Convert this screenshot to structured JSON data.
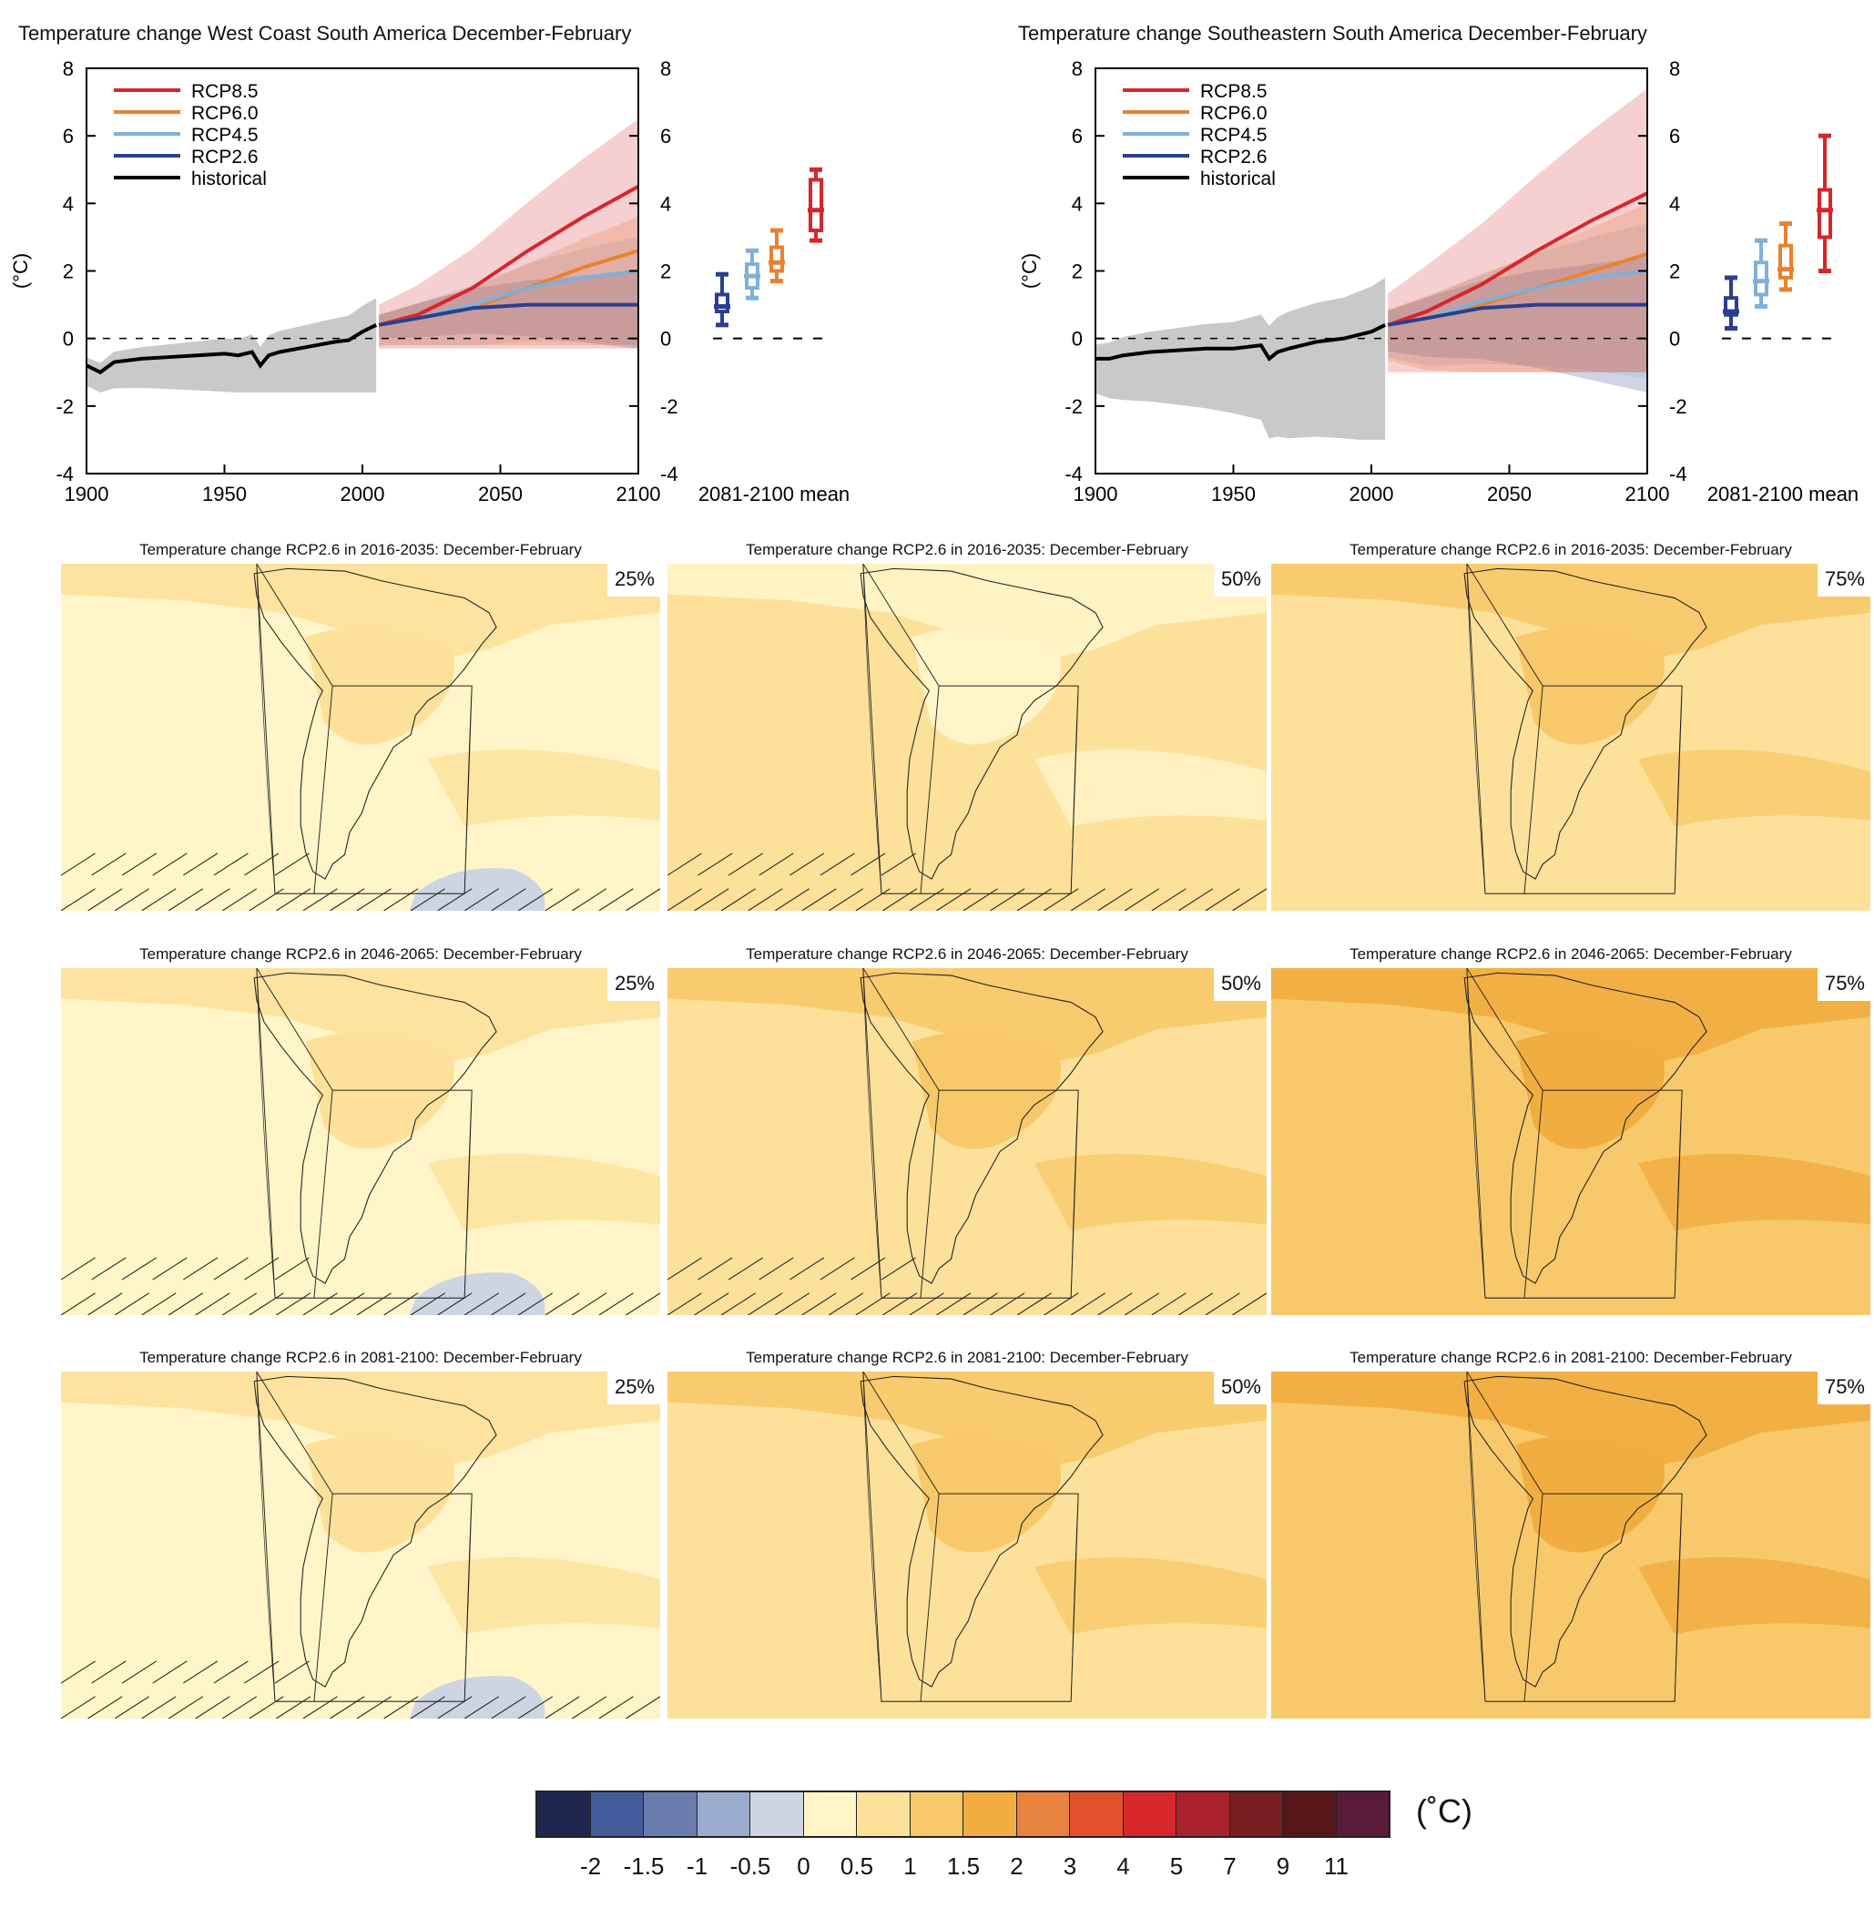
{
  "chart_data": [
    {
      "type": "line",
      "title": "Temperature change West Coast South America December-February",
      "ylabel": "(°C)",
      "xlim": [
        1900,
        2100
      ],
      "ylim": [
        -4,
        8
      ],
      "xticks": [
        1900,
        1950,
        2000,
        2050,
        2100
      ],
      "yticks": [
        -4,
        -2,
        0,
        2,
        4,
        6,
        8
      ],
      "box_axis_label": "2081-2100 mean",
      "legend": [
        "RCP8.5",
        "RCP6.0",
        "RCP4.5",
        "RCP2.6",
        "historical"
      ],
      "series": [
        {
          "name": "historical",
          "color": "#000000",
          "x": [
            1900,
            1905,
            1910,
            1920,
            1930,
            1940,
            1950,
            1955,
            1960,
            1963,
            1966,
            1970,
            1980,
            1990,
            1995,
            2000,
            2005
          ],
          "y": [
            -0.8,
            -1.0,
            -0.7,
            -0.6,
            -0.55,
            -0.5,
            -0.45,
            -0.5,
            -0.4,
            -0.8,
            -0.5,
            -0.4,
            -0.25,
            -0.1,
            -0.05,
            0.2,
            0.4
          ],
          "band": [
            -1.6,
            1.2
          ]
        },
        {
          "name": "RCP2.6",
          "color": "#2a3f8f",
          "x": [
            2006,
            2020,
            2040,
            2060,
            2080,
            2100
          ],
          "y": [
            0.4,
            0.6,
            0.9,
            1.0,
            1.0,
            1.0
          ],
          "band": [
            -0.3,
            2.0
          ]
        },
        {
          "name": "RCP4.5",
          "color": "#7fb0da",
          "x": [
            2006,
            2020,
            2040,
            2060,
            2080,
            2100
          ],
          "y": [
            0.4,
            0.6,
            1.0,
            1.5,
            1.8,
            2.0
          ],
          "band": [
            -0.2,
            3.0
          ]
        },
        {
          "name": "RCP6.0",
          "color": "#e8822f",
          "x": [
            2006,
            2020,
            2040,
            2060,
            2080,
            2100
          ],
          "y": [
            0.4,
            0.6,
            0.9,
            1.5,
            2.1,
            2.6
          ],
          "band": [
            -0.2,
            3.6
          ]
        },
        {
          "name": "RCP8.5",
          "color": "#d7262b",
          "x": [
            2006,
            2020,
            2040,
            2060,
            2080,
            2100
          ],
          "y": [
            0.4,
            0.7,
            1.5,
            2.6,
            3.6,
            4.5
          ],
          "band": [
            -0.3,
            6.5
          ]
        }
      ],
      "boxplots": [
        {
          "name": "RCP2.6",
          "color": "#2a3f8f",
          "min": 0.4,
          "q1": 0.8,
          "median": 0.95,
          "q3": 1.3,
          "max": 1.9
        },
        {
          "name": "RCP4.5",
          "color": "#7fb0da",
          "min": 1.2,
          "q1": 1.5,
          "median": 1.85,
          "q3": 2.2,
          "max": 2.6
        },
        {
          "name": "RCP6.0",
          "color": "#e8822f",
          "min": 1.7,
          "q1": 2.0,
          "median": 2.25,
          "q3": 2.7,
          "max": 3.2
        },
        {
          "name": "RCP8.5",
          "color": "#d7262b",
          "min": 2.9,
          "q1": 3.2,
          "median": 3.8,
          "q3": 4.7,
          "max": 5.0
        }
      ]
    },
    {
      "type": "line",
      "title": "Temperature change Southeastern South America December-February",
      "ylabel": "(°C)",
      "xlim": [
        1900,
        2100
      ],
      "ylim": [
        -4,
        8
      ],
      "xticks": [
        1900,
        1950,
        2000,
        2050,
        2100
      ],
      "yticks": [
        -4,
        -2,
        0,
        2,
        4,
        6,
        8
      ],
      "box_axis_label": "2081-2100 mean",
      "legend": [
        "RCP8.5",
        "RCP6.0",
        "RCP4.5",
        "RCP2.6",
        "historical"
      ],
      "series": [
        {
          "name": "historical",
          "color": "#000000",
          "x": [
            1900,
            1905,
            1910,
            1920,
            1930,
            1940,
            1950,
            1955,
            1960,
            1963,
            1966,
            1970,
            1980,
            1990,
            1995,
            2000,
            2005
          ],
          "y": [
            -0.6,
            -0.6,
            -0.5,
            -0.4,
            -0.35,
            -0.3,
            -0.3,
            -0.25,
            -0.2,
            -0.6,
            -0.4,
            -0.3,
            -0.1,
            0.0,
            0.1,
            0.2,
            0.4
          ],
          "band": [
            -3.0,
            1.8
          ]
        },
        {
          "name": "RCP2.6",
          "color": "#2a3f8f",
          "x": [
            2006,
            2020,
            2040,
            2060,
            2080,
            2100
          ],
          "y": [
            0.4,
            0.6,
            0.9,
            1.0,
            1.0,
            1.0
          ],
          "band": [
            -1.6,
            2.4
          ]
        },
        {
          "name": "RCP4.5",
          "color": "#7fb0da",
          "x": [
            2006,
            2020,
            2040,
            2060,
            2080,
            2100
          ],
          "y": [
            0.4,
            0.6,
            1.1,
            1.5,
            1.8,
            2.0
          ],
          "band": [
            -1.2,
            3.4
          ]
        },
        {
          "name": "RCP6.0",
          "color": "#e8822f",
          "x": [
            2006,
            2020,
            2040,
            2060,
            2080,
            2100
          ],
          "y": [
            0.4,
            0.6,
            1.0,
            1.5,
            2.0,
            2.5
          ],
          "band": [
            -1.0,
            4.0
          ]
        },
        {
          "name": "RCP8.5",
          "color": "#d7262b",
          "x": [
            2006,
            2020,
            2040,
            2060,
            2080,
            2100
          ],
          "y": [
            0.4,
            0.8,
            1.6,
            2.6,
            3.5,
            4.3
          ],
          "band": [
            -1.0,
            7.4
          ]
        }
      ],
      "boxplots": [
        {
          "name": "RCP2.6",
          "color": "#2a3f8f",
          "min": 0.3,
          "q1": 0.7,
          "median": 0.8,
          "q3": 1.2,
          "max": 1.8
        },
        {
          "name": "RCP4.5",
          "color": "#7fb0da",
          "min": 0.95,
          "q1": 1.3,
          "median": 1.7,
          "q3": 2.25,
          "max": 2.9
        },
        {
          "name": "RCP6.0",
          "color": "#e8822f",
          "min": 1.45,
          "q1": 1.8,
          "median": 2.05,
          "q3": 2.75,
          "max": 3.4
        },
        {
          "name": "RCP8.5",
          "color": "#d7262b",
          "min": 2.0,
          "q1": 3.0,
          "median": 3.8,
          "q3": 4.4,
          "max": 6.0
        }
      ]
    }
  ],
  "maps": {
    "rows": [
      {
        "title": "Temperature change RCP2.6 in 2016-2035: December-February",
        "fills": [
          "#fff5c8",
          "#fde19a",
          "#fde19a"
        ],
        "blobs": [
          "#fde19a",
          "#fff5c8",
          "#f8c96a"
        ],
        "hatch": [
          true,
          true,
          false
        ],
        "negative": [
          true,
          false,
          false
        ]
      },
      {
        "title": "Temperature change RCP2.6 in 2046-2065: December-February",
        "fills": [
          "#fff5c8",
          "#fde19a",
          "#f8c96a"
        ],
        "blobs": [
          "#fde19a",
          "#f8c96a",
          "#f1ad40"
        ],
        "hatch": [
          true,
          true,
          false
        ],
        "negative": [
          true,
          false,
          false
        ]
      },
      {
        "title": "Temperature change RCP2.6 in 2081-2100: December-February",
        "fills": [
          "#fff5c8",
          "#fde19a",
          "#f8c96a"
        ],
        "blobs": [
          "#fde19a",
          "#f8c96a",
          "#f1ad40"
        ],
        "hatch": [
          true,
          false,
          false
        ],
        "negative": [
          true,
          false,
          false
        ]
      }
    ],
    "percentiles": [
      "25%",
      "50%",
      "75%"
    ]
  },
  "colorbar": {
    "unit": "(˚C)",
    "colors": [
      "#1f2750",
      "#435d9c",
      "#6a7bad",
      "#9aaccd",
      "#cdd5e3",
      "#fff5c8",
      "#fde19a",
      "#f8c96a",
      "#f1ad40",
      "#e8823f",
      "#e0512c",
      "#d7272b",
      "#aa2229",
      "#791f21",
      "#571719",
      "#5a1a3a"
    ],
    "labels": [
      "-2",
      "-1.5",
      "-1",
      "-0.5",
      "0",
      "0.5",
      "1",
      "1.5",
      "2",
      "3",
      "4",
      "5",
      "7",
      "9",
      "11"
    ]
  }
}
